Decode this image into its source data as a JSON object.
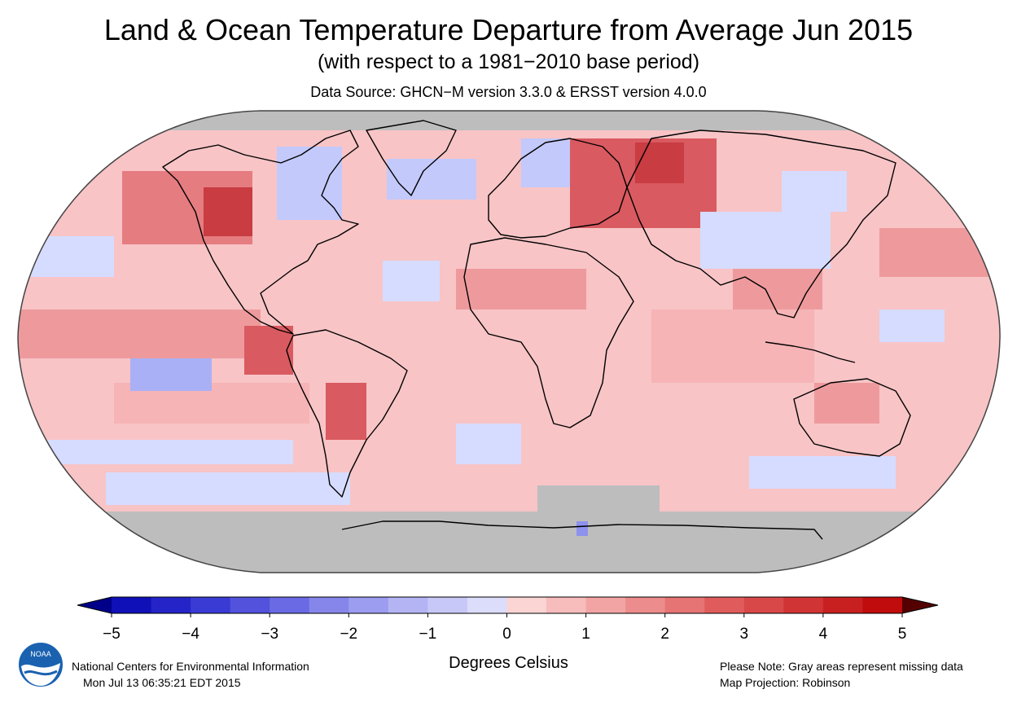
{
  "header": {
    "title": "Land & Ocean Temperature Departure from Average Jun 2015",
    "subtitle": "(with respect to a 1981−2010 base period)",
    "source": "Data Source: GHCN−M version 3.3.0 & ERSST version 4.0.0"
  },
  "map": {
    "projection_note": "Map Projection: Robinson",
    "colors": {
      "missing": "#bdbdbd",
      "warm_levels": [
        "#fbd0d2",
        "#f6b4b6",
        "#ee9a9d",
        "#e57c80",
        "#d95a60",
        "#c83c42",
        "#b81c24"
      ],
      "cool_levels": [
        "#d6dcff",
        "#c3c9fb",
        "#aab0f5",
        "#8d92ee"
      ]
    }
  },
  "colorbar": {
    "ticks": [
      "−5",
      "−4",
      "−3",
      "−2",
      "−1",
      "0",
      "1",
      "2",
      "3",
      "4",
      "5"
    ],
    "label": "Degrees Celsius",
    "colors": [
      "#1010b8",
      "#2424c8",
      "#3a3ad4",
      "#5252dc",
      "#6a6ae4",
      "#8686ea",
      "#9c9cf0",
      "#b4b4f5",
      "#c8c8f8",
      "#dcdcfb",
      "#fbd4d4",
      "#f7bcbc",
      "#f2a4a4",
      "#ec8c8c",
      "#e67474",
      "#e05c5c",
      "#d84848",
      "#d03434",
      "#c82020",
      "#c00c0c"
    ],
    "under_color": "#000088",
    "over_color": "#550000"
  },
  "footer": {
    "org": "National Centers for Environmental Information",
    "timestamp": "Mon Jul 13 06:35:21 EDT 2015",
    "note": "Please Note: Gray areas represent missing data",
    "projection": "Map Projection: Robinson",
    "logo_text": "NOAA"
  }
}
